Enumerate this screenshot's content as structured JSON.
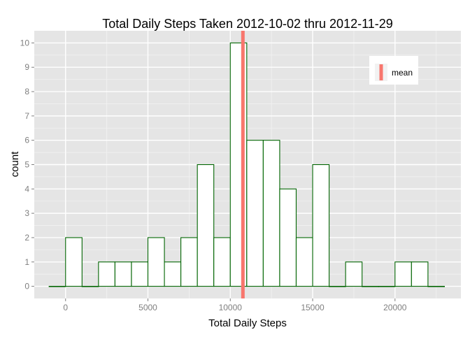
{
  "chart_data": {
    "type": "bar",
    "title": "Total Daily Steps Taken 2012-10-02 thru 2012-11-29",
    "xlabel": "Total Daily Steps",
    "ylabel": "count",
    "bin_width": 1000,
    "bins": [
      {
        "x0": -1000,
        "x1": 0,
        "count": 0
      },
      {
        "x0": 0,
        "x1": 1000,
        "count": 2
      },
      {
        "x0": 1000,
        "x1": 2000,
        "count": 0
      },
      {
        "x0": 2000,
        "x1": 3000,
        "count": 1
      },
      {
        "x0": 3000,
        "x1": 4000,
        "count": 1
      },
      {
        "x0": 4000,
        "x1": 5000,
        "count": 1
      },
      {
        "x0": 5000,
        "x1": 6000,
        "count": 2
      },
      {
        "x0": 6000,
        "x1": 7000,
        "count": 1
      },
      {
        "x0": 7000,
        "x1": 8000,
        "count": 2
      },
      {
        "x0": 8000,
        "x1": 9000,
        "count": 5
      },
      {
        "x0": 9000,
        "x1": 10000,
        "count": 2
      },
      {
        "x0": 10000,
        "x1": 11000,
        "count": 10
      },
      {
        "x0": 11000,
        "x1": 12000,
        "count": 6
      },
      {
        "x0": 12000,
        "x1": 13000,
        "count": 6
      },
      {
        "x0": 13000,
        "x1": 14000,
        "count": 4
      },
      {
        "x0": 14000,
        "x1": 15000,
        "count": 2
      },
      {
        "x0": 15000,
        "x1": 16000,
        "count": 5
      },
      {
        "x0": 16000,
        "x1": 17000,
        "count": 0
      },
      {
        "x0": 17000,
        "x1": 18000,
        "count": 1
      },
      {
        "x0": 18000,
        "x1": 19000,
        "count": 0
      },
      {
        "x0": 19000,
        "x1": 20000,
        "count": 0
      },
      {
        "x0": 20000,
        "x1": 21000,
        "count": 1
      },
      {
        "x0": 21000,
        "x1": 22000,
        "count": 1
      },
      {
        "x0": 22000,
        "x1": 23000,
        "count": 0
      }
    ],
    "mean": 10766,
    "legend": {
      "label": "mean",
      "position": "top-right"
    },
    "xlim": [
      -1900,
      24000
    ],
    "ylim": [
      -0.5,
      10.5
    ],
    "xticks": [
      0,
      5000,
      10000,
      15000,
      20000
    ],
    "xtick_labels": [
      "0",
      "5000",
      "10000",
      "15000",
      "20000"
    ],
    "yticks": [
      0,
      1,
      2,
      3,
      4,
      5,
      6,
      7,
      8,
      9,
      10
    ],
    "ytick_labels": [
      "0",
      "1",
      "2",
      "3",
      "4",
      "5",
      "6",
      "7",
      "8",
      "9",
      "10"
    ],
    "grid": true,
    "colors": {
      "panel_background": "#e5e5e5",
      "grid_major": "#ffffff",
      "grid_minor": "#f2f2f2",
      "bar_fill": "#ffffff",
      "bar_outline": "#006400",
      "mean_line": "#f8766d",
      "tick_label": "#7f7f7f",
      "legend_key": "#f2f2f2"
    }
  }
}
